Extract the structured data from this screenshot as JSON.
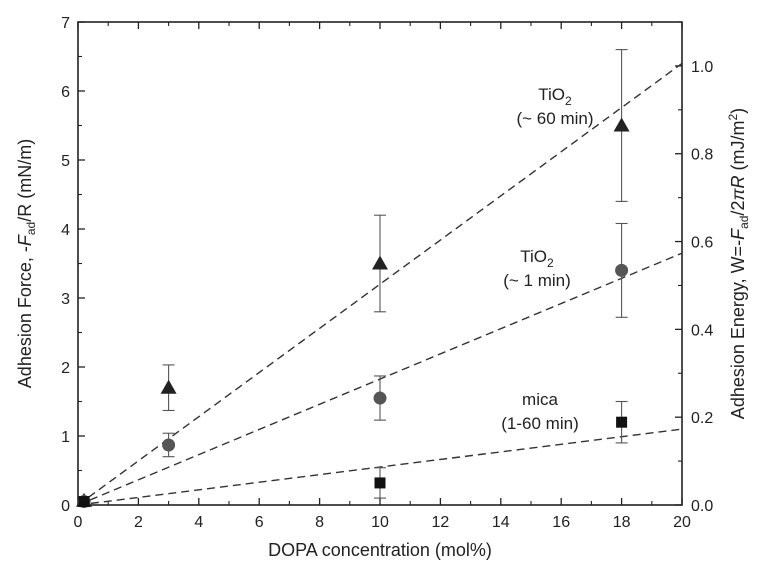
{
  "chart_data": {
    "type": "scatter",
    "xlabel": "DOPA concentration (mol%)",
    "ylabel": {
      "pre": "Adhesion Force, -",
      "F": "F",
      "sub": "ad",
      "post": "/R (mN/m)"
    },
    "y2label": {
      "pre": "Adhesion Energy, W=-",
      "F": "F",
      "sub": "ad",
      "mid": "/2",
      "pi": "π",
      "R": "R",
      "post": " (mJ/m",
      "sup": "2",
      "close": ")"
    },
    "xlim": [
      0,
      20
    ],
    "ylim": [
      0,
      7
    ],
    "y2lim": [
      0,
      1.1
    ],
    "x_ticks": [
      "0",
      "2",
      "4",
      "6",
      "8",
      "10",
      "12",
      "14",
      "16",
      "18",
      "20"
    ],
    "y_ticks": [
      "0",
      "1",
      "2",
      "3",
      "4",
      "5",
      "6",
      "7"
    ],
    "y2_ticks": [
      "0.0",
      "0.2",
      "0.4",
      "0.6",
      "0.8",
      "1.0"
    ],
    "grid": false,
    "series": [
      {
        "marker": "triangle",
        "color": "#222222",
        "points": [
          {
            "x": 0.2,
            "y": 0.06,
            "err": 0
          },
          {
            "x": 3,
            "y": 1.7,
            "err": 0.33
          },
          {
            "x": 10,
            "y": 3.5,
            "err": 0.7
          },
          {
            "x": 18,
            "y": 5.5,
            "err": 1.1
          }
        ],
        "fit": {
          "x": [
            0,
            20
          ],
          "y": [
            0,
            6.4
          ]
        },
        "annotation": {
          "line1": "TiO",
          "sub": "2",
          "line2": "(~ 60 min)"
        }
      },
      {
        "marker": "circle",
        "color": "#555555",
        "points": [
          {
            "x": 0.2,
            "y": 0.05,
            "err": 0
          },
          {
            "x": 3,
            "y": 0.87,
            "err": 0.17
          },
          {
            "x": 10,
            "y": 1.55,
            "err": 0.32
          },
          {
            "x": 18,
            "y": 3.4,
            "err": 0.68
          }
        ],
        "fit": {
          "x": [
            0,
            20
          ],
          "y": [
            0,
            3.65
          ]
        },
        "annotation": {
          "line1": "TiO",
          "sub": "2",
          "line2": "(~ 1 min)"
        }
      },
      {
        "marker": "square",
        "color": "#111111",
        "points": [
          {
            "x": 0.2,
            "y": 0.05,
            "err": 0
          },
          {
            "x": 10,
            "y": 0.32,
            "err": 0.22
          },
          {
            "x": 18,
            "y": 1.2,
            "err": 0.3
          }
        ],
        "fit": {
          "x": [
            0,
            20
          ],
          "y": [
            0,
            1.1
          ]
        },
        "annotation": {
          "line1": "mica",
          "sub": "",
          "line2": "(1-60 min)"
        }
      }
    ]
  }
}
